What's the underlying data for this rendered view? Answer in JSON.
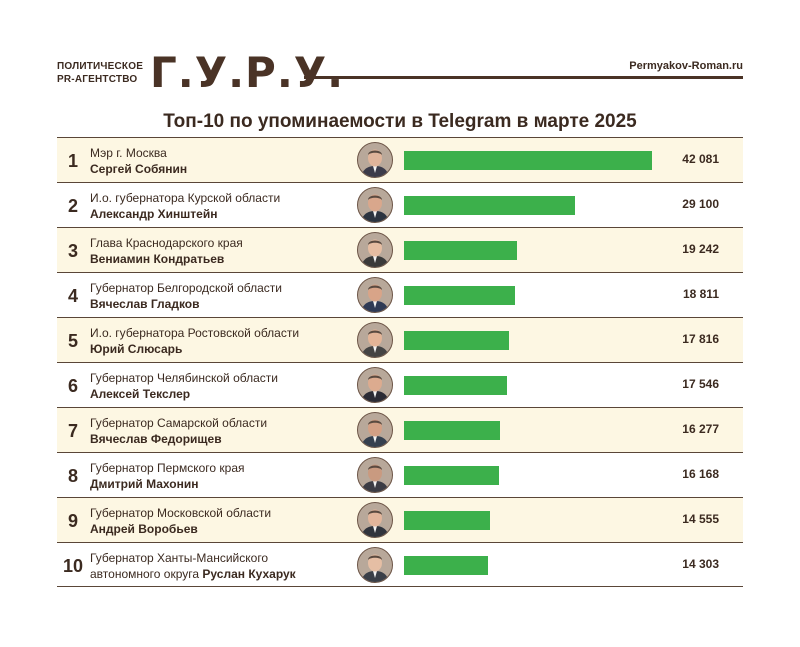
{
  "header": {
    "agency_line1": "ПОЛИТИЧЕСКОЕ",
    "agency_line2": "PR-АГЕНТСТВО",
    "logo": "Г.У.Р.У.",
    "site": "Permyakov-Roman.ru"
  },
  "colors": {
    "bar": "#3cb04b",
    "text": "#3b2a20",
    "alt_row": "#fdf7e3"
  },
  "chart_data": {
    "type": "bar",
    "title": "Топ-10 по упоминаемости в Telegram в марте 2025",
    "xlim": [
      0,
      42081
    ],
    "categories": [
      "Сергей Собянин",
      "Александр Хинштейн",
      "Вениамин Кондратьев",
      "Вячеслав Гладков",
      "Юрий Слюсарь",
      "Алексей Текслер",
      "Вячеслав Федорищев",
      "Дмитрий Махонин",
      "Андрей Воробьев",
      "Руслан Кухарук"
    ],
    "values": [
      42081,
      29100,
      19242,
      18811,
      17816,
      17546,
      16277,
      16168,
      14555,
      14303
    ],
    "rows": [
      {
        "rank": "1",
        "role": "Мэр г. Москва",
        "name": "Сергей Собянин",
        "value": 42081,
        "value_label": "42 081",
        "avatar": "portrait-icon"
      },
      {
        "rank": "2",
        "role": "И.о. губернатора Курской области",
        "name": "Александр Хинштейн",
        "value": 29100,
        "value_label": "29 100",
        "avatar": "portrait-icon"
      },
      {
        "rank": "3",
        "role": "Глава Краснодарского края",
        "name": "Вениамин Кондратьев",
        "value": 19242,
        "value_label": "19 242",
        "avatar": "portrait-icon"
      },
      {
        "rank": "4",
        "role": "Губернатор Белгородской области",
        "name": "Вячеслав Гладков",
        "value": 18811,
        "value_label": "18 811",
        "avatar": "portrait-icon"
      },
      {
        "rank": "5",
        "role": "И.о. губернатора Ростовской области",
        "name": "Юрий Слюсарь",
        "value": 17816,
        "value_label": "17 816",
        "avatar": "portrait-icon"
      },
      {
        "rank": "6",
        "role": "Губернатор Челябинской области",
        "name": "Алексей Текслер",
        "value": 17546,
        "value_label": "17 546",
        "avatar": "portrait-icon"
      },
      {
        "rank": "7",
        "role": "Губернатор Самарской области",
        "name": "Вячеслав Федорищев",
        "value": 16277,
        "value_label": "16 277",
        "avatar": "portrait-icon"
      },
      {
        "rank": "8",
        "role": "Губернатор Пермского края",
        "name": "Дмитрий Махонин",
        "value": 16168,
        "value_label": "16 168",
        "avatar": "portrait-icon"
      },
      {
        "rank": "9",
        "role": "Губернатор Московской области",
        "name": "Андрей Воробьев",
        "value": 14555,
        "value_label": "14 555",
        "avatar": "portrait-icon"
      },
      {
        "rank": "10",
        "role": "Губернатор Ханты-Мансийского",
        "role_cont": "автономного округа",
        "name": "Руслан Кухарук",
        "value": 14303,
        "value_label": "14 303",
        "avatar": "portrait-icon"
      }
    ]
  }
}
